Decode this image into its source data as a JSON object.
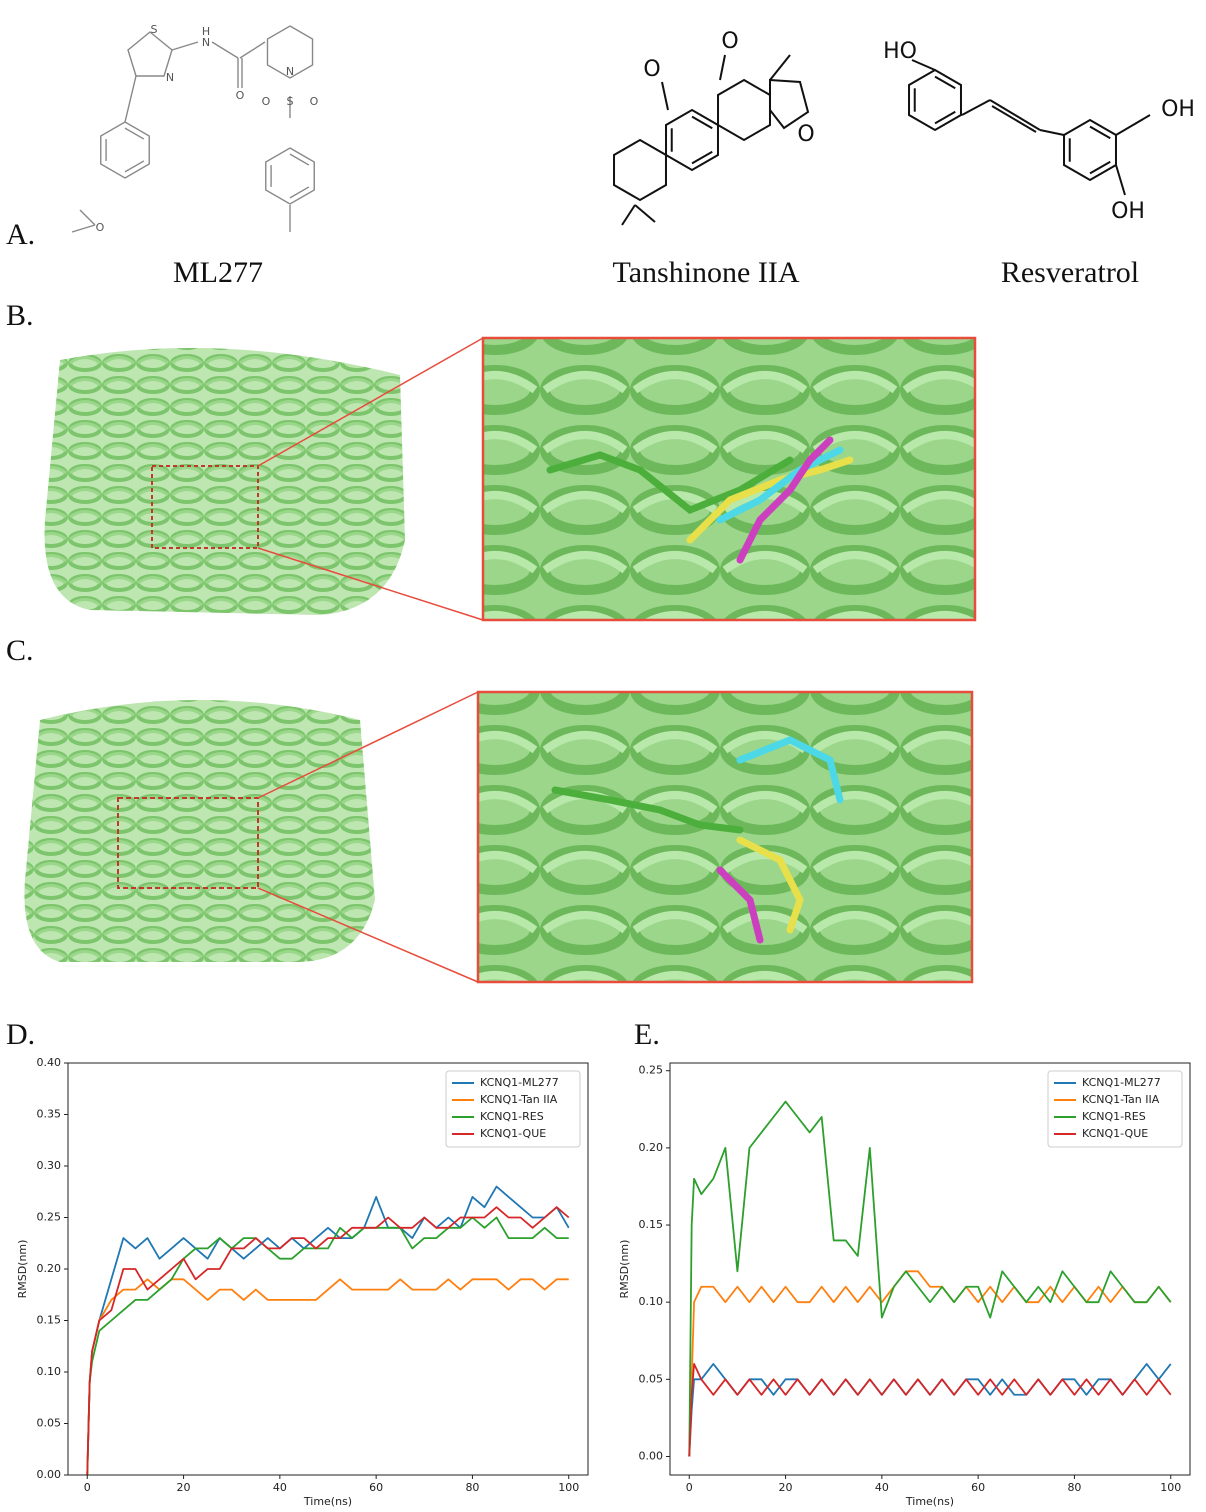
{
  "figure": {
    "panel_labels": [
      "A.",
      "B.",
      "C.",
      "D.",
      "E."
    ],
    "compounds": [
      "ML277",
      "Tanshinone IIA",
      "Resveratrol"
    ],
    "atoms": {
      "ml277": [
        "S",
        "N",
        "H",
        "N",
        "O",
        "N",
        "O",
        "S",
        "O",
        "O"
      ],
      "tanshinone": [
        "O",
        "O",
        "O"
      ],
      "resveratrol": [
        "HO",
        "OH",
        "OH"
      ]
    }
  },
  "chart_data": [
    {
      "type": "line",
      "x": [
        0,
        0.5,
        1,
        2.5,
        5,
        7.5,
        10,
        12.5,
        15,
        17.5,
        20,
        22.5,
        25,
        27.5,
        30,
        32.5,
        35,
        37.5,
        40,
        42.5,
        45,
        47.5,
        50,
        52.5,
        55,
        57.5,
        60,
        62.5,
        65,
        67.5,
        70,
        72.5,
        75,
        77.5,
        80,
        82.5,
        85,
        87.5,
        90,
        92.5,
        95,
        97.5,
        100
      ],
      "xlim": [
        -4,
        104
      ],
      "xticks": [
        0,
        20,
        40,
        60,
        80,
        100
      ],
      "ylim": [
        0,
        0.4
      ],
      "yticks": [
        {
          "value": 0,
          "label": "0.00"
        },
        {
          "value": 0.05,
          "label": "0.05"
        },
        {
          "value": 0.1,
          "label": "0.10"
        },
        {
          "value": 0.15,
          "label": "0.15"
        },
        {
          "value": 0.2,
          "label": "0.20"
        },
        {
          "value": 0.25,
          "label": "0.25"
        },
        {
          "value": 0.3,
          "label": "0.30"
        },
        {
          "value": 0.35,
          "label": "0.35"
        },
        {
          "value": 0.4,
          "label": "0.40"
        }
      ],
      "xlabel": "Time(ns)",
      "ylabel": "RMSD(nm)",
      "legend": "upper right",
      "series": [
        {
          "name": "KCNQ1-ML277",
          "color": "#1f77b4",
          "values": [
            0,
            0.09,
            0.12,
            0.15,
            0.19,
            0.23,
            0.22,
            0.23,
            0.21,
            0.22,
            0.23,
            0.22,
            0.21,
            0.23,
            0.22,
            0.21,
            0.22,
            0.23,
            0.22,
            0.23,
            0.22,
            0.23,
            0.24,
            0.23,
            0.23,
            0.24,
            0.27,
            0.24,
            0.24,
            0.23,
            0.25,
            0.24,
            0.25,
            0.24,
            0.27,
            0.26,
            0.28,
            0.27,
            0.26,
            0.25,
            0.25,
            0.26,
            0.24
          ]
        },
        {
          "name": "KCNQ1-Tan IIA",
          "color": "#ff7f0e",
          "values": [
            0,
            0.09,
            0.12,
            0.15,
            0.17,
            0.18,
            0.18,
            0.19,
            0.18,
            0.19,
            0.19,
            0.18,
            0.17,
            0.18,
            0.18,
            0.17,
            0.18,
            0.17,
            0.17,
            0.17,
            0.17,
            0.17,
            0.18,
            0.19,
            0.18,
            0.18,
            0.18,
            0.18,
            0.19,
            0.18,
            0.18,
            0.18,
            0.19,
            0.18,
            0.19,
            0.19,
            0.19,
            0.18,
            0.19,
            0.19,
            0.18,
            0.19,
            0.19
          ]
        },
        {
          "name": "KCNQ1-RES",
          "color": "#2ca02c",
          "values": [
            0,
            0.09,
            0.11,
            0.14,
            0.15,
            0.16,
            0.17,
            0.17,
            0.18,
            0.19,
            0.21,
            0.22,
            0.22,
            0.23,
            0.22,
            0.23,
            0.23,
            0.22,
            0.21,
            0.21,
            0.22,
            0.22,
            0.22,
            0.24,
            0.23,
            0.24,
            0.24,
            0.24,
            0.24,
            0.22,
            0.23,
            0.23,
            0.24,
            0.24,
            0.25,
            0.24,
            0.25,
            0.23,
            0.23,
            0.23,
            0.24,
            0.23,
            0.23
          ]
        },
        {
          "name": "KCNQ1-QUE",
          "color": "#d62728",
          "values": [
            0,
            0.09,
            0.12,
            0.15,
            0.16,
            0.2,
            0.2,
            0.18,
            0.19,
            0.2,
            0.21,
            0.19,
            0.2,
            0.2,
            0.22,
            0.22,
            0.23,
            0.22,
            0.22,
            0.23,
            0.23,
            0.22,
            0.23,
            0.23,
            0.24,
            0.24,
            0.24,
            0.25,
            0.24,
            0.24,
            0.25,
            0.24,
            0.24,
            0.25,
            0.25,
            0.25,
            0.26,
            0.25,
            0.25,
            0.24,
            0.25,
            0.26,
            0.25
          ]
        }
      ]
    },
    {
      "type": "line",
      "x": [
        0,
        0.5,
        1,
        2.5,
        5,
        7.5,
        10,
        12.5,
        15,
        17.5,
        20,
        22.5,
        25,
        27.5,
        30,
        32.5,
        35,
        37.5,
        40,
        42.5,
        45,
        47.5,
        50,
        52.5,
        55,
        57.5,
        60,
        62.5,
        65,
        67.5,
        70,
        72.5,
        75,
        77.5,
        80,
        82.5,
        85,
        87.5,
        90,
        92.5,
        95,
        97.5,
        100
      ],
      "xlim": [
        -4,
        104
      ],
      "xticks": [
        0,
        20,
        40,
        60,
        80,
        100
      ],
      "ylim": [
        -0.012,
        0.255
      ],
      "yticks": [
        {
          "value": 0,
          "label": "0.00"
        },
        {
          "value": 0.05,
          "label": "0.05"
        },
        {
          "value": 0.1,
          "label": "0.10"
        },
        {
          "value": 0.15,
          "label": "0.15"
        },
        {
          "value": 0.2,
          "label": "0.20"
        },
        {
          "value": 0.25,
          "label": "0.25"
        }
      ],
      "xlabel": "Time(ns)",
      "ylabel": "RMSD(nm)",
      "legend": "upper right",
      "series": [
        {
          "name": "KCNQ1-ML277",
          "color": "#1f77b4",
          "values": [
            0,
            0.03,
            0.05,
            0.05,
            0.06,
            0.05,
            0.04,
            0.05,
            0.05,
            0.04,
            0.05,
            0.05,
            0.04,
            0.05,
            0.04,
            0.05,
            0.04,
            0.05,
            0.04,
            0.05,
            0.04,
            0.05,
            0.04,
            0.05,
            0.04,
            0.05,
            0.05,
            0.04,
            0.05,
            0.04,
            0.04,
            0.05,
            0.04,
            0.05,
            0.05,
            0.04,
            0.05,
            0.05,
            0.04,
            0.05,
            0.06,
            0.05,
            0.06
          ]
        },
        {
          "name": "KCNQ1-Tan IIA",
          "color": "#ff7f0e",
          "values": [
            0,
            0.05,
            0.1,
            0.11,
            0.11,
            0.1,
            0.11,
            0.1,
            0.11,
            0.1,
            0.11,
            0.1,
            0.1,
            0.11,
            0.1,
            0.11,
            0.1,
            0.11,
            0.1,
            0.11,
            0.12,
            0.12,
            0.11,
            0.11,
            0.1,
            0.11,
            0.1,
            0.11,
            0.1,
            0.11,
            0.1,
            0.1,
            0.11,
            0.1,
            0.11,
            0.1,
            0.11,
            0.1,
            0.11,
            0.1,
            0.1,
            0.11,
            0.1
          ]
        },
        {
          "name": "KCNQ1-RES",
          "color": "#2ca02c",
          "values": [
            0,
            0.15,
            0.18,
            0.17,
            0.18,
            0.2,
            0.12,
            0.2,
            0.21,
            0.22,
            0.23,
            0.22,
            0.21,
            0.22,
            0.14,
            0.14,
            0.13,
            0.2,
            0.09,
            0.11,
            0.12,
            0.11,
            0.1,
            0.11,
            0.1,
            0.11,
            0.11,
            0.09,
            0.12,
            0.11,
            0.1,
            0.11,
            0.1,
            0.12,
            0.11,
            0.1,
            0.1,
            0.12,
            0.11,
            0.1,
            0.1,
            0.11,
            0.1
          ]
        },
        {
          "name": "KCNQ1-QUE",
          "color": "#d62728",
          "values": [
            0,
            0.04,
            0.06,
            0.05,
            0.04,
            0.05,
            0.04,
            0.05,
            0.04,
            0.05,
            0.04,
            0.05,
            0.04,
            0.05,
            0.04,
            0.05,
            0.04,
            0.05,
            0.04,
            0.05,
            0.04,
            0.05,
            0.04,
            0.05,
            0.04,
            0.05,
            0.04,
            0.05,
            0.04,
            0.05,
            0.04,
            0.05,
            0.04,
            0.05,
            0.04,
            0.05,
            0.04,
            0.05,
            0.04,
            0.05,
            0.04,
            0.05,
            0.04
          ]
        }
      ]
    }
  ]
}
